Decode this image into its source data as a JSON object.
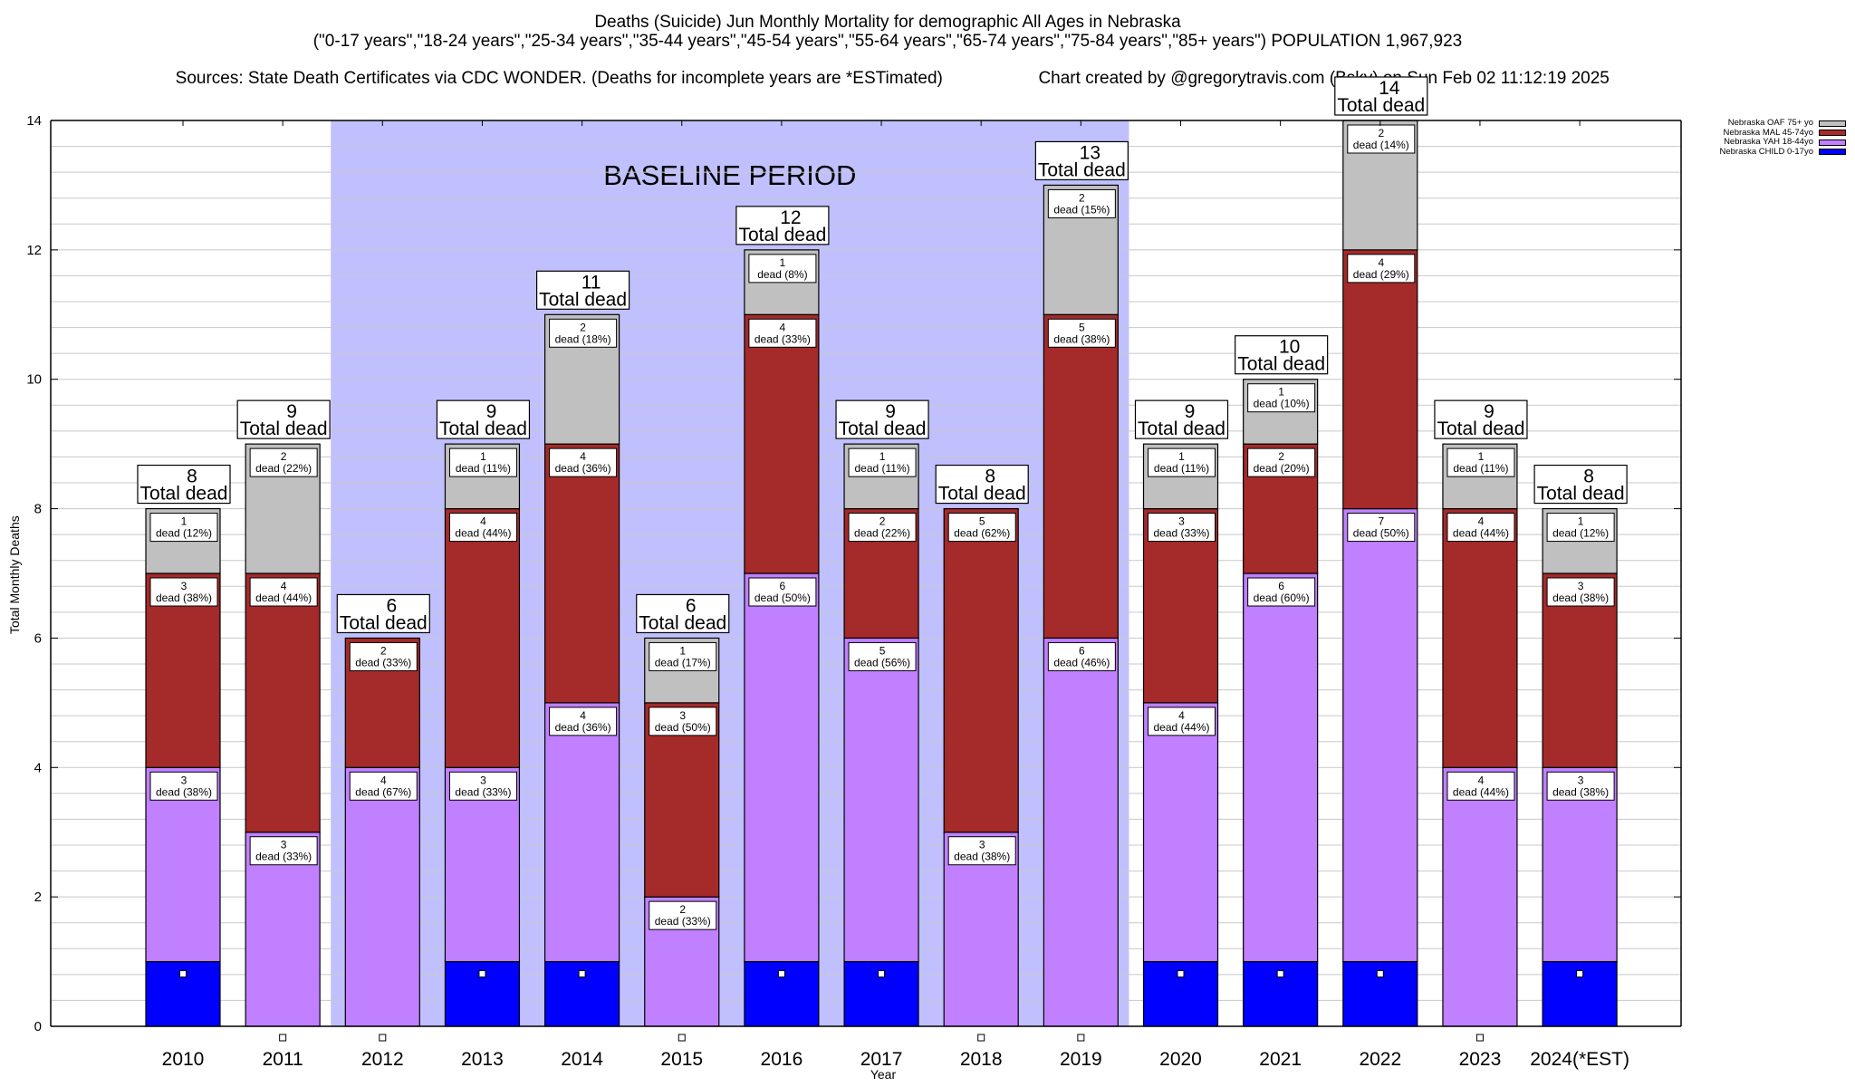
{
  "chart_data": {
    "type": "bar",
    "stacked": true,
    "title": "Deaths (Suicide) Jun Monthly Mortality for demographic All Ages in Nebraska",
    "subtitle": "(\"0-17 years\",\"18-24 years\",\"25-34 years\",\"35-44 years\",\"45-54 years\",\"55-64 years\",\"65-74 years\",\"75-84 years\",\"85+ years\") POPULATION 1,967,923",
    "source_line": "Sources: State Death Certificates via CDC WONDER. (Deaths for incomplete years are *ESTimated)",
    "credit_line": "Chart created by @gregorytravis.com (Bsky) on Sun Feb 02 11:12:19 2025",
    "xlabel": "Year",
    "ylabel": "Total Monthly Deaths",
    "ylim": [
      0,
      14
    ],
    "yticks": [
      "0",
      "2",
      "4",
      "6",
      "8",
      "10",
      "12",
      "14"
    ],
    "grid": true,
    "legend_position": "top-right",
    "annotation": "BASELINE PERIOD",
    "baseline_period": [
      "2012",
      "2019"
    ],
    "total_label_suffix": "Total dead",
    "segment_label_word": "dead",
    "categories": [
      "2010",
      "2011",
      "2012",
      "2013",
      "2014",
      "2015",
      "2016",
      "2017",
      "2018",
      "2019",
      "2020",
      "2021",
      "2022",
      "2023",
      "2024(*EST)"
    ],
    "series": [
      {
        "name": "Nebraska CHILD 0-17yo",
        "color": "#0000ff",
        "values": [
          1,
          0,
          0,
          1,
          1,
          0,
          1,
          1,
          0,
          0,
          1,
          1,
          1,
          0,
          1
        ],
        "percents": [
          "",
          "",
          "",
          "",
          "",
          "",
          "",
          "",
          "",
          "",
          "",
          "",
          "",
          "",
          ""
        ]
      },
      {
        "name": "Nebraska YAH 18-44yo",
        "color": "#c080ff",
        "values": [
          3,
          3,
          4,
          3,
          4,
          2,
          6,
          5,
          3,
          6,
          4,
          6,
          7,
          4,
          3
        ],
        "percents": [
          "38%",
          "33%",
          "67%",
          "33%",
          "36%",
          "33%",
          "50%",
          "56%",
          "38%",
          "46%",
          "44%",
          "60%",
          "50%",
          "44%",
          "38%"
        ]
      },
      {
        "name": "Nebraska MAL 45-74yo",
        "color": "#a52a2a",
        "values": [
          3,
          4,
          2,
          4,
          4,
          3,
          4,
          2,
          5,
          5,
          3,
          2,
          4,
          4,
          3
        ],
        "percents": [
          "38%",
          "44%",
          "33%",
          "44%",
          "36%",
          "50%",
          "33%",
          "22%",
          "62%",
          "38%",
          "33%",
          "20%",
          "29%",
          "44%",
          "38%"
        ]
      },
      {
        "name": "Nebraska OAF 75+ yo",
        "color": "#c0c0c0",
        "values": [
          1,
          2,
          0,
          1,
          2,
          1,
          1,
          1,
          0,
          2,
          1,
          1,
          2,
          1,
          1
        ],
        "percents": [
          "12%",
          "22%",
          "",
          "11%",
          "18%",
          "17%",
          "8%",
          "11%",
          "",
          "15%",
          "11%",
          "10%",
          "14%",
          "11%",
          "12%"
        ]
      }
    ],
    "totals": [
      8,
      9,
      6,
      9,
      11,
      6,
      12,
      9,
      8,
      13,
      9,
      10,
      14,
      9,
      8
    ]
  },
  "colors": {
    "baseline_shade": "#c0c0ff",
    "gridline": "#c8c8c8"
  },
  "legend": [
    {
      "label": "Nebraska OAF 75+ yo",
      "color": "#c0c0c0"
    },
    {
      "label": "Nebraska MAL 45-74yo",
      "color": "#a52a2a"
    },
    {
      "label": "Nebraska YAH 18-44yo",
      "color": "#c080ff"
    },
    {
      "label": "Nebraska CHILD 0-17yo",
      "color": "#0000ff"
    }
  ]
}
